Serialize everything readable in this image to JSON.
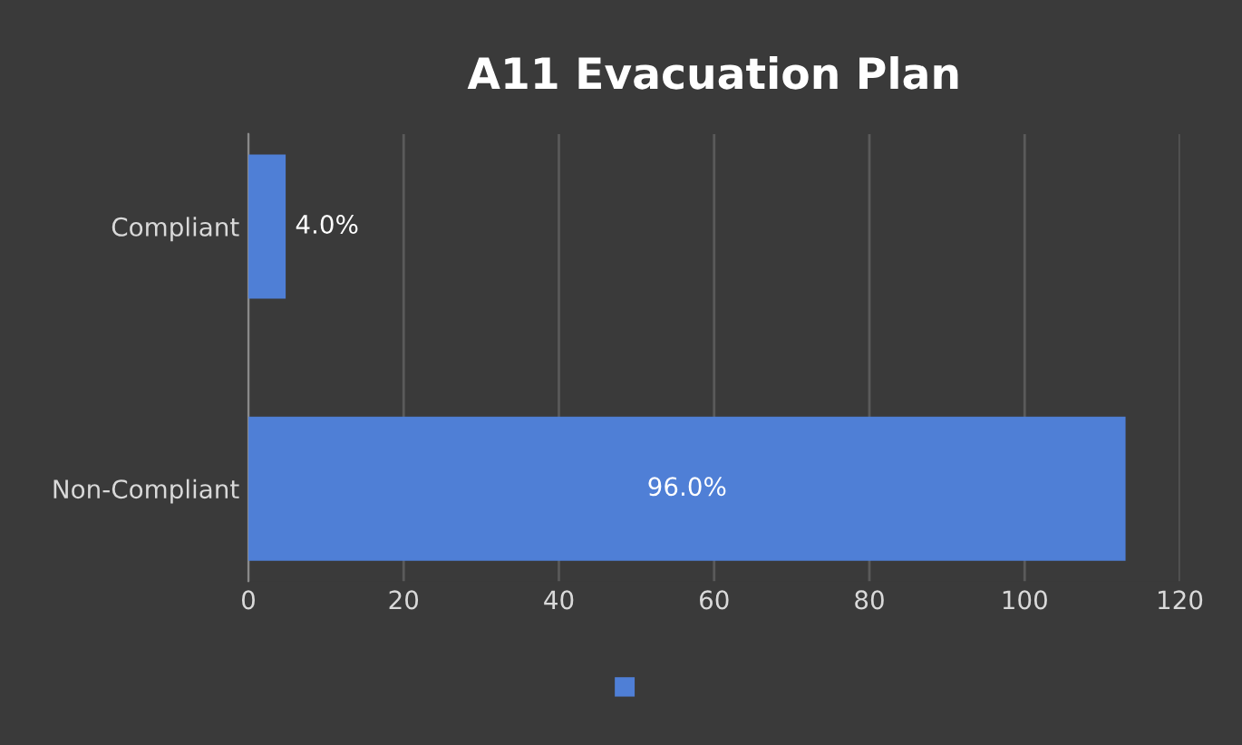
{
  "chart_data": {
    "type": "bar",
    "orientation": "horizontal",
    "title": "A11 Evacuation Plan",
    "categories": [
      "Compliant",
      "Non-Compliant"
    ],
    "series": [
      {
        "color": "#4f7fd6",
        "values": [
          4.8,
          113
        ]
      }
    ],
    "annotations": [
      "4.0%",
      "96.0%"
    ],
    "xlim": [
      0,
      120
    ],
    "xticks": [
      0,
      20,
      40,
      60,
      80,
      100,
      120
    ],
    "grid": "x"
  }
}
